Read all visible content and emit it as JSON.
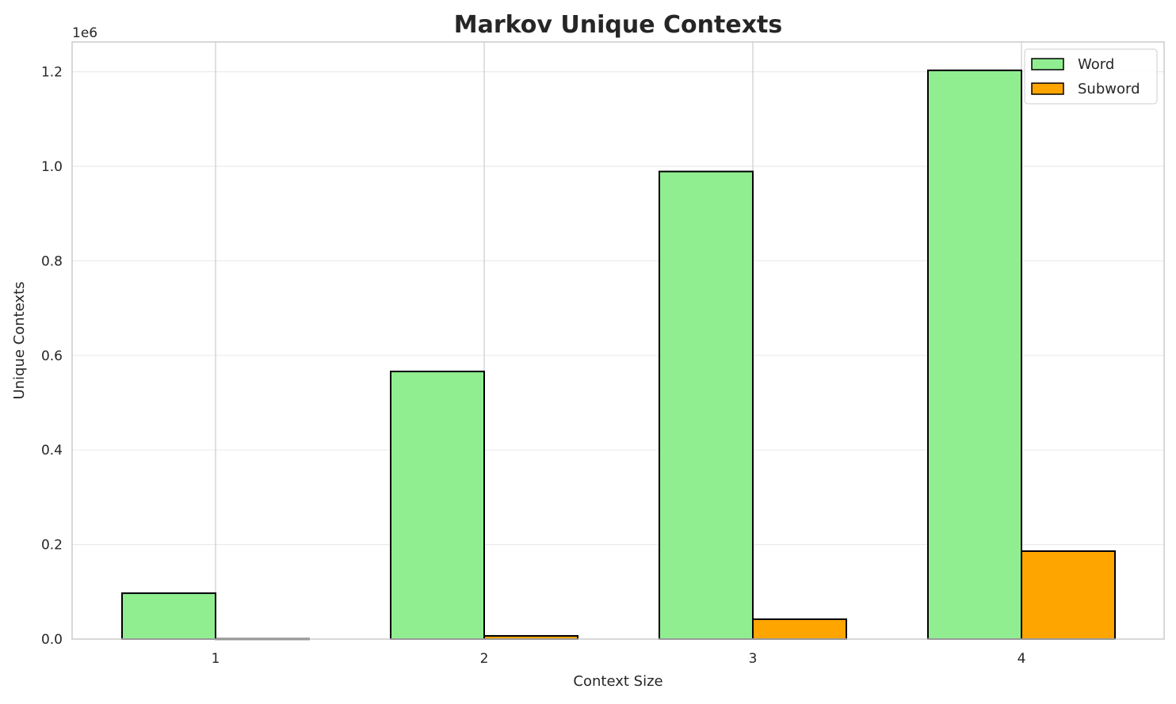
{
  "chart_data": {
    "type": "bar",
    "title": "Markov Unique Contexts",
    "xlabel": "Context Size",
    "ylabel": "Unique Contexts",
    "y_offset_label": "1e6",
    "categories": [
      "1",
      "2",
      "3",
      "4"
    ],
    "series": [
      {
        "name": "Word",
        "color": "#90EE90",
        "values": [
          97000,
          566000,
          989000,
          1203000
        ]
      },
      {
        "name": "Subword",
        "color": "#FFA500",
        "values": [
          500,
          6700,
          42000,
          186000
        ]
      }
    ],
    "ylim": [
      0,
      1263000
    ],
    "yticks": [
      0,
      200000,
      400000,
      600000,
      800000,
      1000000,
      1200000
    ],
    "ytick_labels": [
      "0.0",
      "0.2",
      "0.4",
      "0.6",
      "0.8",
      "1.0",
      "1.2"
    ],
    "grid": true,
    "legend_position": "top-right"
  }
}
